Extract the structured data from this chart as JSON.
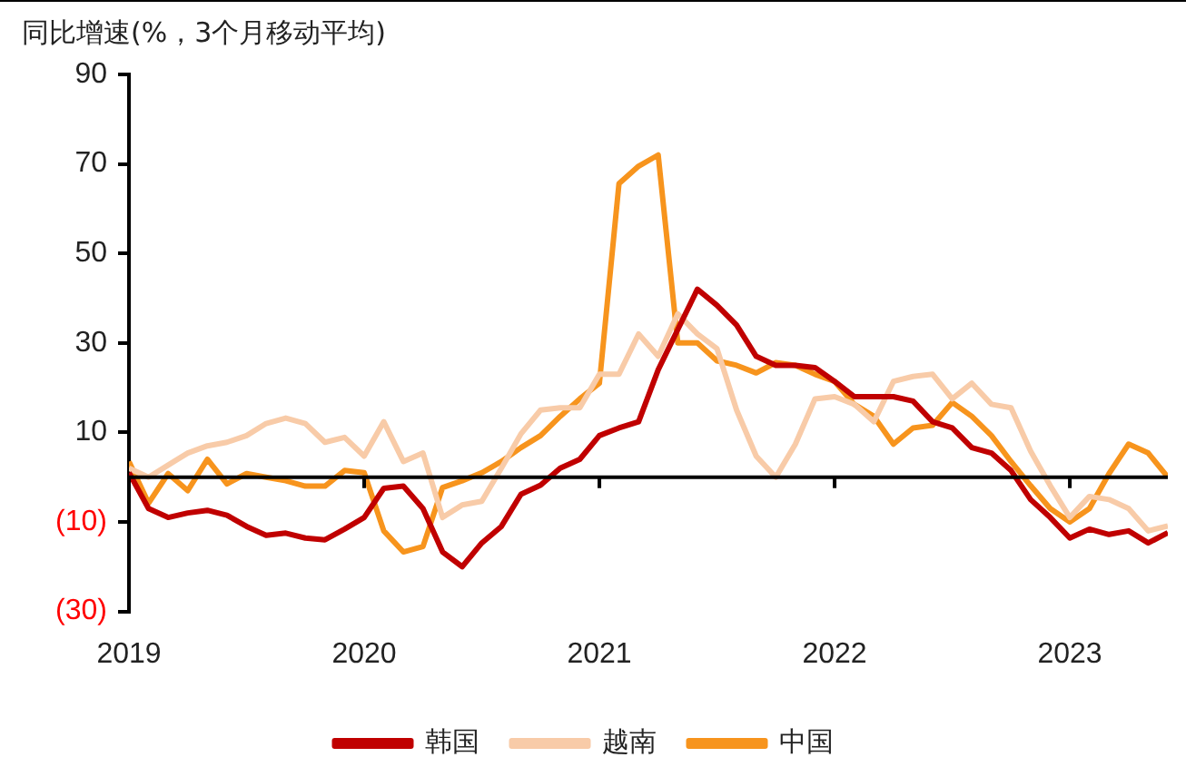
{
  "chart_data": {
    "type": "line",
    "ylabel": "同比增速(%，3个月移动平均)",
    "x": [
      "2019-01",
      "2019-02",
      "2019-03",
      "2019-04",
      "2019-05",
      "2019-06",
      "2019-07",
      "2019-08",
      "2019-09",
      "2019-10",
      "2019-11",
      "2019-12",
      "2020-01",
      "2020-02",
      "2020-03",
      "2020-04",
      "2020-05",
      "2020-06",
      "2020-07",
      "2020-08",
      "2020-09",
      "2020-10",
      "2020-11",
      "2020-12",
      "2021-01",
      "2021-02",
      "2021-03",
      "2021-04",
      "2021-05",
      "2021-06",
      "2021-07",
      "2021-08",
      "2021-09",
      "2021-10",
      "2021-11",
      "2021-12",
      "2022-01",
      "2022-02",
      "2022-03",
      "2022-04",
      "2022-05",
      "2022-06",
      "2022-07",
      "2022-08",
      "2022-09",
      "2022-10",
      "2022-11",
      "2022-12",
      "2023-01",
      "2023-02",
      "2023-03",
      "2023-04",
      "2023-05",
      "2023-06"
    ],
    "series": [
      {
        "name": "韩国",
        "color": "#c00000",
        "values": [
          1,
          -7,
          -9,
          -8,
          -7.4,
          -8.5,
          -11,
          -13,
          -12.5,
          -13.6,
          -14,
          -11.6,
          -9,
          -2.5,
          -2,
          -7,
          -16.7,
          -20,
          -14.7,
          -11,
          -3.8,
          -1.8,
          2,
          4,
          9.3,
          11,
          12.4,
          24,
          33,
          42,
          38.4,
          34,
          27,
          25,
          25,
          24.5,
          21.4,
          18,
          18,
          18,
          17,
          12.4,
          11,
          6.6,
          5.4,
          1.5,
          -5,
          -9,
          -13.6,
          -11.6,
          -12.8,
          -12,
          -14.7,
          -12.4
        ]
      },
      {
        "name": "越南",
        "color": "#f8cba8",
        "values": [
          2,
          0,
          2.7,
          5.4,
          7,
          7.8,
          9.3,
          12,
          13.2,
          12,
          7.8,
          8.9,
          4.7,
          12.4,
          3.5,
          5.4,
          -9,
          -6.2,
          -5.4,
          2,
          9.7,
          15,
          15.5,
          15.5,
          23,
          23,
          32,
          27,
          36.5,
          32,
          28.7,
          15,
          4.7,
          0,
          7.4,
          17.5,
          18,
          16.3,
          12.4,
          21.4,
          22.5,
          23,
          17.5,
          21,
          16.3,
          15.5,
          5.8,
          -1.9,
          -9,
          -4.3,
          -5,
          -7,
          -12,
          -10.9
        ]
      },
      {
        "name": "中国",
        "color": "#f7941d",
        "values": [
          3.5,
          -5.8,
          0.8,
          -3,
          4,
          -1.5,
          0.8,
          0,
          -0.8,
          -2,
          -2,
          1.5,
          1,
          -12,
          -16.7,
          -15.5,
          -2.3,
          -0.8,
          1,
          3.5,
          6.6,
          9.3,
          13.6,
          17.5,
          21,
          65.6,
          69.5,
          72,
          30,
          30,
          26,
          25,
          23.3,
          25.6,
          25,
          23,
          21.4,
          16.3,
          13.6,
          7.4,
          11,
          11.6,
          16.7,
          13.6,
          9.3,
          3.5,
          -1.9,
          -7,
          -10,
          -7,
          0.8,
          7.4,
          5.4,
          0
        ]
      }
    ],
    "xlim": [
      "2019-01",
      "2023-06"
    ],
    "xticks": [
      {
        "value": "2019-01",
        "label": "2019"
      },
      {
        "value": "2020-01",
        "label": "2020"
      },
      {
        "value": "2021-01",
        "label": "2021"
      },
      {
        "value": "2022-01",
        "label": "2022"
      },
      {
        "value": "2023-01",
        "label": "2023"
      }
    ],
    "ylim": [
      -30,
      90
    ],
    "yticks": [
      90,
      70,
      50,
      30,
      10,
      {
        "value": -10,
        "label": "(10)"
      },
      {
        "value": -30,
        "label": "(30)"
      }
    ],
    "ref_lines": [
      {
        "axis": "y",
        "value": 0,
        "color": "#000000"
      }
    ],
    "legend": "bottom",
    "grid": false,
    "marker": "none",
    "line_style": "solid"
  }
}
